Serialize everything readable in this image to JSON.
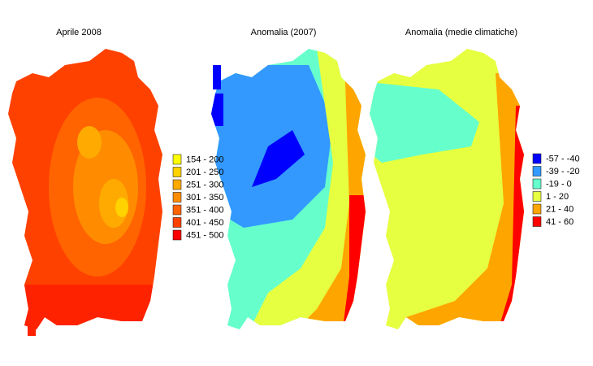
{
  "maps": [
    {
      "title": "Aprile 2008",
      "legend": [
        {
          "label": "154 - 200",
          "color": "#ffff00"
        },
        {
          "label": "201 - 250",
          "color": "#ffd200"
        },
        {
          "label": "251 - 300",
          "color": "#ffaa00"
        },
        {
          "label": "301 - 350",
          "color": "#ff8c00"
        },
        {
          "label": "351 - 400",
          "color": "#ff6400"
        },
        {
          "label": "401 - 450",
          "color": "#ff4100"
        },
        {
          "label": "451 - 500",
          "color": "#ff0000"
        }
      ]
    },
    {
      "title": "Anomalia (2007)"
    },
    {
      "title": "Anomalia (medie climatiche)",
      "legend": [
        {
          "label": "-57 - -40",
          "color": "#0000ff"
        },
        {
          "label": "-39 - -20",
          "color": "#3399ff"
        },
        {
          "label": "-19 - 0",
          "color": "#66ffcc"
        },
        {
          "label": "1 - 20",
          "color": "#e6ff40"
        },
        {
          "label": "21 - 40",
          "color": "#ffa500"
        },
        {
          "label": "41 - 60",
          "color": "#ff0000"
        }
      ]
    }
  ]
}
